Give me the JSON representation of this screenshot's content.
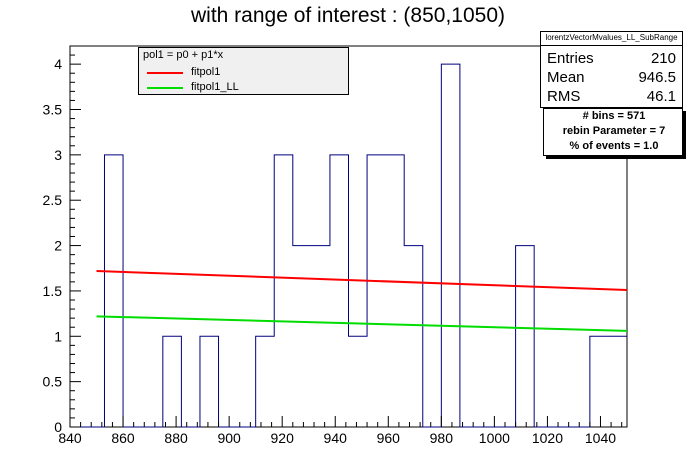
{
  "title": "with range of interest : (850,1050)",
  "legend": {
    "header": "pol1 = p0 + p1*x",
    "entries": [
      {
        "label": "fitpol1",
        "color": "#ff0000"
      },
      {
        "label": "fitpol1_LL",
        "color": "#00dd00"
      }
    ]
  },
  "stats": {
    "name": "lorentzVectorMvalues_LL_SubRange",
    "rows": [
      {
        "key": "Entries",
        "value": "210"
      },
      {
        "key": "Mean",
        "value": "946.5"
      },
      {
        "key": "RMS",
        "value": "46.1"
      }
    ]
  },
  "info": {
    "lines": [
      "# bins = 571",
      "rebin Parameter = 7",
      "% of events = 1.0"
    ]
  },
  "chart_data": {
    "type": "line",
    "title": "with range of interest : (850,1050)",
    "xlim": [
      840,
      1050
    ],
    "ylim": [
      0,
      4.2
    ],
    "x_ticks": [
      840,
      860,
      880,
      900,
      920,
      940,
      960,
      980,
      1000,
      1020,
      1040
    ],
    "y_ticks": [
      0,
      0.5,
      1,
      1.5,
      2,
      2.5,
      3,
      3.5,
      4
    ],
    "histogram": {
      "color": "#000080",
      "bin_edges": [
        840,
        853,
        860,
        875,
        882,
        889,
        896,
        910,
        917,
        924,
        938,
        945,
        952,
        966,
        973,
        980,
        987,
        1008,
        1015,
        1036,
        1050
      ],
      "values": [
        0,
        3,
        0,
        1,
        0,
        1,
        0,
        1,
        3,
        2,
        3,
        1,
        3,
        2,
        0,
        4,
        0,
        2,
        0,
        1
      ]
    },
    "series": [
      {
        "name": "fitpol1",
        "color": "#ff0000",
        "x": [
          850,
          1050
        ],
        "y": [
          1.72,
          1.51
        ]
      },
      {
        "name": "fitpol1_LL",
        "color": "#00dd00",
        "x": [
          850,
          1050
        ],
        "y": [
          1.22,
          1.06
        ]
      }
    ]
  }
}
